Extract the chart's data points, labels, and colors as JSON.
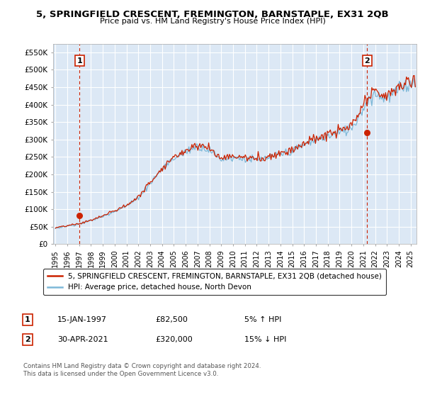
{
  "title": "5, SPRINGFIELD CRESCENT, FREMINGTON, BARNSTAPLE, EX31 2QB",
  "subtitle": "Price paid vs. HM Land Registry's House Price Index (HPI)",
  "ylim": [
    0,
    575000
  ],
  "xlim_start": 1994.8,
  "xlim_end": 2025.5,
  "yticks": [
    0,
    50000,
    100000,
    150000,
    200000,
    250000,
    300000,
    350000,
    400000,
    450000,
    500000,
    550000
  ],
  "ytick_labels": [
    "£0",
    "£50K",
    "£100K",
    "£150K",
    "£200K",
    "£250K",
    "£300K",
    "£350K",
    "£400K",
    "£450K",
    "£500K",
    "£550K"
  ],
  "xtick_years": [
    1995,
    1996,
    1997,
    1998,
    1999,
    2000,
    2001,
    2002,
    2003,
    2004,
    2005,
    2006,
    2007,
    2008,
    2009,
    2010,
    2011,
    2012,
    2013,
    2014,
    2015,
    2016,
    2017,
    2018,
    2019,
    2020,
    2021,
    2022,
    2023,
    2024,
    2025
  ],
  "bg_color": "#dce8f5",
  "grid_color": "#ffffff",
  "hpi_color": "#7db8d8",
  "price_color": "#cc2200",
  "vline_color": "#cc2200",
  "sale1_x": 1997.04,
  "sale1_y": 82500,
  "sale2_x": 2021.33,
  "sale2_y": 320000,
  "legend_line1": "5, SPRINGFIELD CRESCENT, FREMINGTON, BARNSTAPLE, EX31 2QB (detached house)",
  "legend_line2": "HPI: Average price, detached house, North Devon",
  "annotation1_date": "15-JAN-1997",
  "annotation1_price": "£82,500",
  "annotation1_hpi": "5% ↑ HPI",
  "annotation2_date": "30-APR-2021",
  "annotation2_price": "£320,000",
  "annotation2_hpi": "15% ↓ HPI",
  "copyright_text": "Contains HM Land Registry data © Crown copyright and database right 2024.\nThis data is licensed under the Open Government Licence v3.0."
}
